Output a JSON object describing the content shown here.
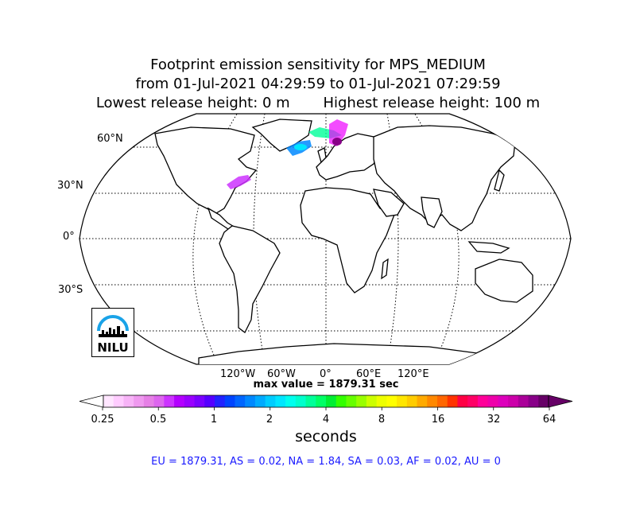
{
  "title": {
    "line1": "Footprint emission sensitivity for MPS_MEDIUM",
    "line2": "from 01-Jul-2021 04:29:59 to 01-Jul-2021 07:29:59",
    "line3_left": "Lowest release height: 0 m",
    "line3_right": "Highest release height: 100 m"
  },
  "map": {
    "projection": "Robinson",
    "lat_labels": [
      "60°N",
      "30°N",
      "0°",
      "30°S"
    ],
    "lon_labels": [
      "120°W",
      "60°W",
      "0°",
      "60°E",
      "120°E"
    ]
  },
  "max_value_text": "max value = 1879.31 sec",
  "colorbar": {
    "tick_labels": [
      "0.25",
      "0.5",
      "1",
      "2",
      "4",
      "8",
      "16",
      "32",
      "64"
    ],
    "label": "seconds",
    "colors": [
      "#ffe6ff",
      "#ffccff",
      "#f7b3f7",
      "#ef99ef",
      "#e680e6",
      "#dd66ee",
      "#cc33ff",
      "#b300ff",
      "#9900ff",
      "#7a00ff",
      "#5500ff",
      "#2222ff",
      "#0044ff",
      "#0066ff",
      "#0088ff",
      "#00aaff",
      "#00ccff",
      "#00e6ff",
      "#00ffee",
      "#00ffcc",
      "#00ff99",
      "#00ff66",
      "#00ee33",
      "#33ff00",
      "#66ff00",
      "#99ff00",
      "#ccff00",
      "#eeff00",
      "#ffff00",
      "#ffe600",
      "#ffcc00",
      "#ffaa00",
      "#ff8800",
      "#ff6600",
      "#ff3300",
      "#ff0044",
      "#ff0066",
      "#ff0099",
      "#ee00aa",
      "#dd00bb",
      "#cc00aa",
      "#aa0099",
      "#880088",
      "#660066"
    ]
  },
  "region_values": "EU = 1879.31,  AS = 0.02,  NA = 1.84,  SA = 0.03,  AF = 0.02,  AU = 0",
  "logo": {
    "text": "NILU"
  }
}
